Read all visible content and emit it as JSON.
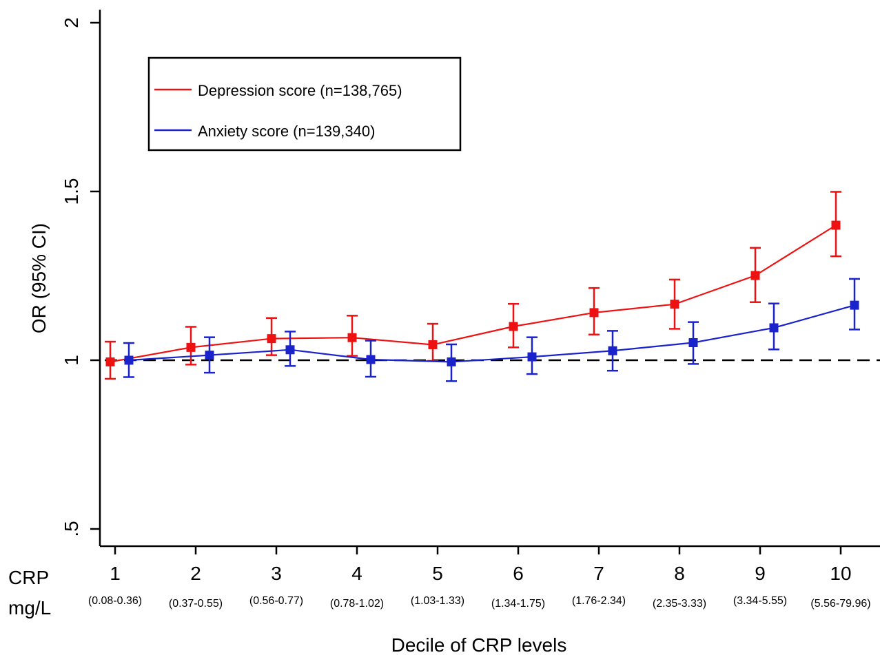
{
  "chart_data": {
    "type": "line",
    "xlabel": "Decile of CRP levels",
    "ylabel": "OR (95% CI)",
    "yticks": [
      {
        "value": 0.5,
        "label": ".5"
      },
      {
        "value": 1.0,
        "label": "1"
      },
      {
        "value": 1.5,
        "label": "1.5"
      },
      {
        "value": 2.0,
        "label": "2"
      }
    ],
    "ylim": [
      0.45,
      2.05
    ],
    "reference_line": 1.0,
    "row_label_top": "CRP",
    "row_label_bottom": "mg/L",
    "categories": [
      "1",
      "2",
      "3",
      "4",
      "5",
      "6",
      "7",
      "8",
      "9",
      "10"
    ],
    "ranges": [
      "(0.08-0.36)",
      "(0.37-0.55)",
      "(0.56-0.77)",
      "(0.78-1.02)",
      "(1.03-1.33)",
      "(1.34-1.75)",
      "(1.76-2.34)",
      "(2.35-3.33)",
      "(3.34-5.55)",
      "(5.56-79.96)"
    ],
    "legend": {
      "position": "top-left"
    },
    "series": [
      {
        "name": "Depression score (n=138,765)",
        "color": "#ee1111",
        "values": [
          0.995,
          1.038,
          1.064,
          1.067,
          1.046,
          1.1,
          1.141,
          1.166,
          1.251,
          1.4
        ],
        "lower": [
          0.945,
          0.987,
          1.015,
          1.013,
          0.998,
          1.038,
          1.076,
          1.093,
          1.172,
          1.308
        ],
        "upper": [
          1.055,
          1.099,
          1.125,
          1.132,
          1.108,
          1.167,
          1.214,
          1.239,
          1.333,
          1.499
        ]
      },
      {
        "name": "Anxiety score (n=139,340)",
        "color": "#1a22cc",
        "values": [
          1.0,
          1.015,
          1.031,
          1.002,
          0.995,
          1.01,
          1.028,
          1.052,
          1.096,
          1.163
        ],
        "lower": [
          0.95,
          0.963,
          0.983,
          0.951,
          0.938,
          0.959,
          0.969,
          0.989,
          1.032,
          1.091
        ],
        "upper": [
          1.051,
          1.068,
          1.085,
          1.058,
          1.047,
          1.068,
          1.087,
          1.113,
          1.168,
          1.241
        ]
      }
    ]
  }
}
